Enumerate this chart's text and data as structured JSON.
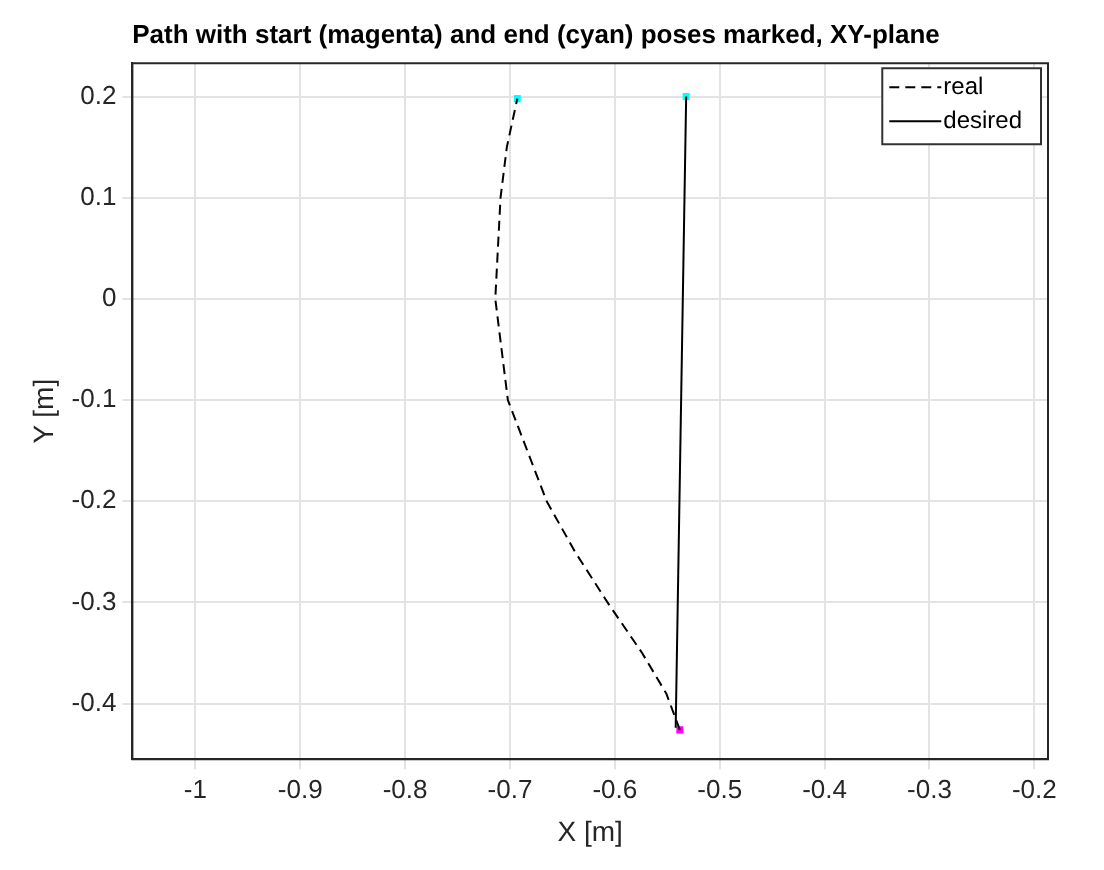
{
  "chart_data": {
    "type": "line",
    "title": "Path with start (magenta) and end (cyan) poses marked, XY-plane",
    "xlabel": "X [m]",
    "ylabel": "Y [m]",
    "xlim": [
      -1.06,
      -0.187
    ],
    "xticks": [
      -1,
      -0.9,
      -0.8,
      -0.7,
      -0.6,
      -0.5,
      -0.4,
      -0.3,
      -0.2
    ],
    "ylim": [
      -0.455,
      0.233
    ],
    "yticks": [
      -0.4,
      -0.3,
      -0.2,
      -0.1,
      0,
      0.1,
      0.2
    ],
    "grid": true,
    "legend": "top right",
    "marker": "none",
    "series": [
      {
        "name": "real",
        "color": "#000000",
        "line_style": "dashed",
        "x": [
          -0.538,
          -0.551,
          -0.574,
          -0.607,
          -0.638,
          -0.665,
          -0.702,
          -0.714,
          -0.709,
          -0.703,
          -0.693
        ],
        "values": [
          -0.426,
          -0.39,
          -0.35,
          -0.3,
          -0.25,
          -0.2,
          -0.1,
          0,
          0.1,
          0.15,
          0.198
        ]
      },
      {
        "name": "desired",
        "color": "#000000",
        "line_style": "solid",
        "x": [
          -0.542,
          -0.532
        ],
        "values": [
          -0.424,
          0.2
        ]
      },
      {
        "type": "scatter",
        "color": "#ff00ff",
        "marker": "square",
        "x": [
          -0.538
        ],
        "values": [
          -0.426
        ]
      },
      {
        "type": "scatter",
        "color": "#00ffff",
        "marker": "square",
        "x": [
          -0.693,
          -0.532
        ],
        "values": [
          0.198,
          0.2
        ]
      }
    ]
  }
}
